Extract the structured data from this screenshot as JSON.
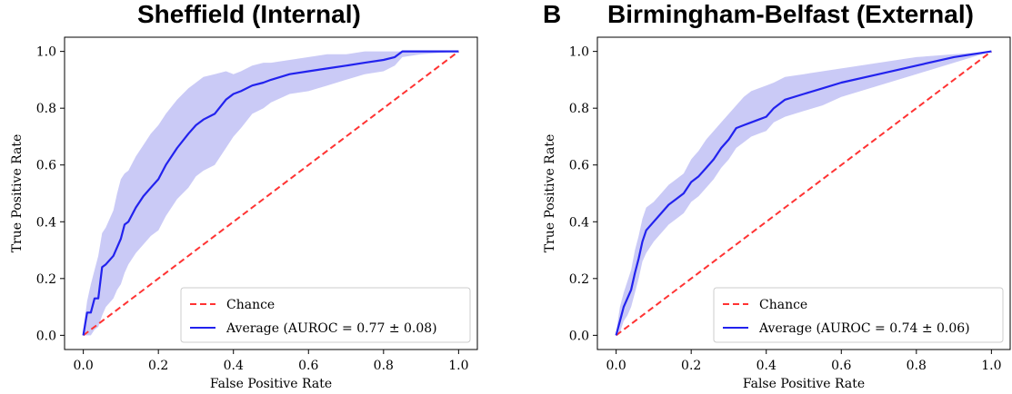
{
  "figure": {
    "panels": [
      {
        "letter": "",
        "title": "Sheffield (Internal)"
      },
      {
        "letter": "B",
        "title": "Birmingham-Belfast (External)"
      }
    ]
  },
  "chart_data": [
    {
      "type": "line",
      "title": "Sheffield (Internal)",
      "xlabel": "False Positive Rate",
      "ylabel": "True Positive Rate",
      "xlim": [
        -0.05,
        1.05
      ],
      "ylim": [
        -0.05,
        1.05
      ],
      "xticks": [
        0.0,
        0.2,
        0.4,
        0.6,
        0.8,
        1.0
      ],
      "yticks": [
        0.0,
        0.2,
        0.4,
        0.6,
        0.8,
        1.0
      ],
      "tick_labels": [
        "0.0",
        "0.2",
        "0.4",
        "0.6",
        "0.8",
        "1.0"
      ],
      "grid": false,
      "legend_position": "bottom-right",
      "series": [
        {
          "name": "Chance",
          "color": "#ff3333",
          "style": "dashed",
          "x": [
            0,
            1
          ],
          "y": [
            0,
            1
          ]
        },
        {
          "name": "Average (AUROC = 0.77 ± 0.08)",
          "color": "#2222ee",
          "style": "solid",
          "x": [
            0,
            0.01,
            0.02,
            0.03,
            0.04,
            0.05,
            0.06,
            0.08,
            0.09,
            0.1,
            0.11,
            0.12,
            0.14,
            0.16,
            0.18,
            0.2,
            0.22,
            0.25,
            0.28,
            0.3,
            0.32,
            0.35,
            0.38,
            0.4,
            0.42,
            0.45,
            0.48,
            0.5,
            0.55,
            0.6,
            0.65,
            0.7,
            0.75,
            0.8,
            0.83,
            0.85,
            0.9,
            1.0
          ],
          "y": [
            0,
            0.08,
            0.08,
            0.13,
            0.13,
            0.24,
            0.25,
            0.28,
            0.31,
            0.34,
            0.39,
            0.4,
            0.45,
            0.49,
            0.52,
            0.55,
            0.6,
            0.66,
            0.71,
            0.74,
            0.76,
            0.78,
            0.83,
            0.85,
            0.86,
            0.88,
            0.89,
            0.9,
            0.92,
            0.93,
            0.94,
            0.95,
            0.96,
            0.97,
            0.98,
            1.0,
            1.0,
            1.0
          ],
          "band_upper": [
            0.02,
            0.12,
            0.18,
            0.23,
            0.28,
            0.36,
            0.38,
            0.44,
            0.5,
            0.55,
            0.57,
            0.58,
            0.63,
            0.67,
            0.71,
            0.74,
            0.78,
            0.83,
            0.87,
            0.89,
            0.91,
            0.92,
            0.93,
            0.92,
            0.93,
            0.95,
            0.96,
            0.96,
            0.97,
            0.98,
            0.99,
            0.99,
            1.0,
            1.0,
            1.0,
            1.0,
            1.0,
            1.0
          ],
          "band_lower": [
            0,
            0,
            0,
            0.02,
            0.03,
            0.07,
            0.1,
            0.13,
            0.16,
            0.18,
            0.22,
            0.25,
            0.29,
            0.32,
            0.35,
            0.37,
            0.42,
            0.48,
            0.52,
            0.56,
            0.58,
            0.6,
            0.66,
            0.7,
            0.73,
            0.78,
            0.8,
            0.82,
            0.85,
            0.86,
            0.88,
            0.9,
            0.92,
            0.93,
            0.95,
            0.98,
            0.99,
            1.0
          ]
        }
      ]
    },
    {
      "type": "line",
      "title": "Birmingham-Belfast (External)",
      "xlabel": "False Positive Rate",
      "ylabel": "True Positive Rate",
      "xlim": [
        -0.05,
        1.05
      ],
      "ylim": [
        -0.05,
        1.05
      ],
      "xticks": [
        0.0,
        0.2,
        0.4,
        0.6,
        0.8,
        1.0
      ],
      "yticks": [
        0.0,
        0.2,
        0.4,
        0.6,
        0.8,
        1.0
      ],
      "tick_labels": [
        "0.0",
        "0.2",
        "0.4",
        "0.6",
        "0.8",
        "1.0"
      ],
      "grid": false,
      "legend_position": "bottom-right",
      "series": [
        {
          "name": "Chance",
          "color": "#ff3333",
          "style": "dashed",
          "x": [
            0,
            1
          ],
          "y": [
            0,
            1
          ]
        },
        {
          "name": "Average (AUROC = 0.74 ± 0.06)",
          "color": "#2222ee",
          "style": "solid",
          "x": [
            0,
            0.01,
            0.02,
            0.03,
            0.04,
            0.05,
            0.06,
            0.07,
            0.08,
            0.1,
            0.12,
            0.14,
            0.16,
            0.18,
            0.2,
            0.22,
            0.24,
            0.26,
            0.28,
            0.3,
            0.32,
            0.34,
            0.36,
            0.38,
            0.4,
            0.42,
            0.45,
            0.5,
            0.55,
            0.6,
            0.7,
            0.8,
            0.9,
            1.0
          ],
          "y": [
            0,
            0.05,
            0.1,
            0.13,
            0.16,
            0.22,
            0.27,
            0.33,
            0.37,
            0.4,
            0.43,
            0.46,
            0.48,
            0.5,
            0.54,
            0.56,
            0.59,
            0.62,
            0.66,
            0.69,
            0.73,
            0.74,
            0.75,
            0.76,
            0.77,
            0.8,
            0.83,
            0.85,
            0.87,
            0.89,
            0.92,
            0.95,
            0.98,
            1.0
          ],
          "band_upper": [
            0.01,
            0.1,
            0.15,
            0.19,
            0.23,
            0.3,
            0.35,
            0.41,
            0.45,
            0.47,
            0.5,
            0.53,
            0.55,
            0.57,
            0.62,
            0.65,
            0.69,
            0.72,
            0.75,
            0.78,
            0.81,
            0.84,
            0.86,
            0.87,
            0.88,
            0.89,
            0.91,
            0.92,
            0.93,
            0.94,
            0.96,
            0.98,
            0.99,
            1.0
          ],
          "band_lower": [
            0,
            0.01,
            0.05,
            0.07,
            0.1,
            0.15,
            0.2,
            0.26,
            0.29,
            0.33,
            0.36,
            0.39,
            0.41,
            0.43,
            0.47,
            0.49,
            0.52,
            0.55,
            0.59,
            0.62,
            0.66,
            0.68,
            0.7,
            0.71,
            0.72,
            0.75,
            0.77,
            0.79,
            0.81,
            0.84,
            0.88,
            0.92,
            0.96,
            1.0
          ]
        }
      ]
    }
  ]
}
